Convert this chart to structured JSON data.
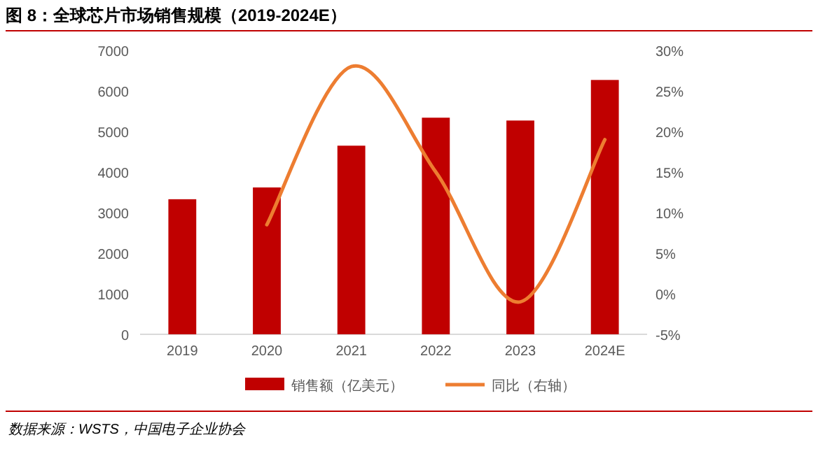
{
  "chart_data": {
    "type": "bar",
    "title": "图 8：全球芯片市场销售规模（2019-2024E）",
    "categories": [
      "2019",
      "2020",
      "2021",
      "2022",
      "2023",
      "2024E"
    ],
    "series": [
      {
        "name": "销售额（亿美元）",
        "color": "#c00000",
        "values": [
          3330,
          3620,
          4650,
          5340,
          5270,
          6270
        ]
      },
      {
        "name": "同比（右轴）",
        "type": "line",
        "axis": "y2",
        "color": "#ed7d31",
        "values": [
          null,
          8.5,
          28,
          15,
          -1,
          19
        ]
      }
    ],
    "ylim": [
      0,
      7000
    ],
    "yticks": [
      0,
      1000,
      2000,
      3000,
      4000,
      5000,
      6000,
      7000
    ],
    "y2lim": [
      -5,
      30
    ],
    "y2ticks": [
      {
        "value": -5,
        "label": "-5%"
      },
      {
        "value": 0,
        "label": "0%"
      },
      {
        "value": 5,
        "label": "5%"
      },
      {
        "value": 10,
        "label": "10%"
      },
      {
        "value": 15,
        "label": "15%"
      },
      {
        "value": 20,
        "label": "20%"
      },
      {
        "value": 25,
        "label": "25%"
      },
      {
        "value": 30,
        "label": "30%"
      }
    ],
    "legend": "bottom",
    "grid": false,
    "annotations": [
      "数据来源：WSTS，中国电子企业协会"
    ]
  }
}
